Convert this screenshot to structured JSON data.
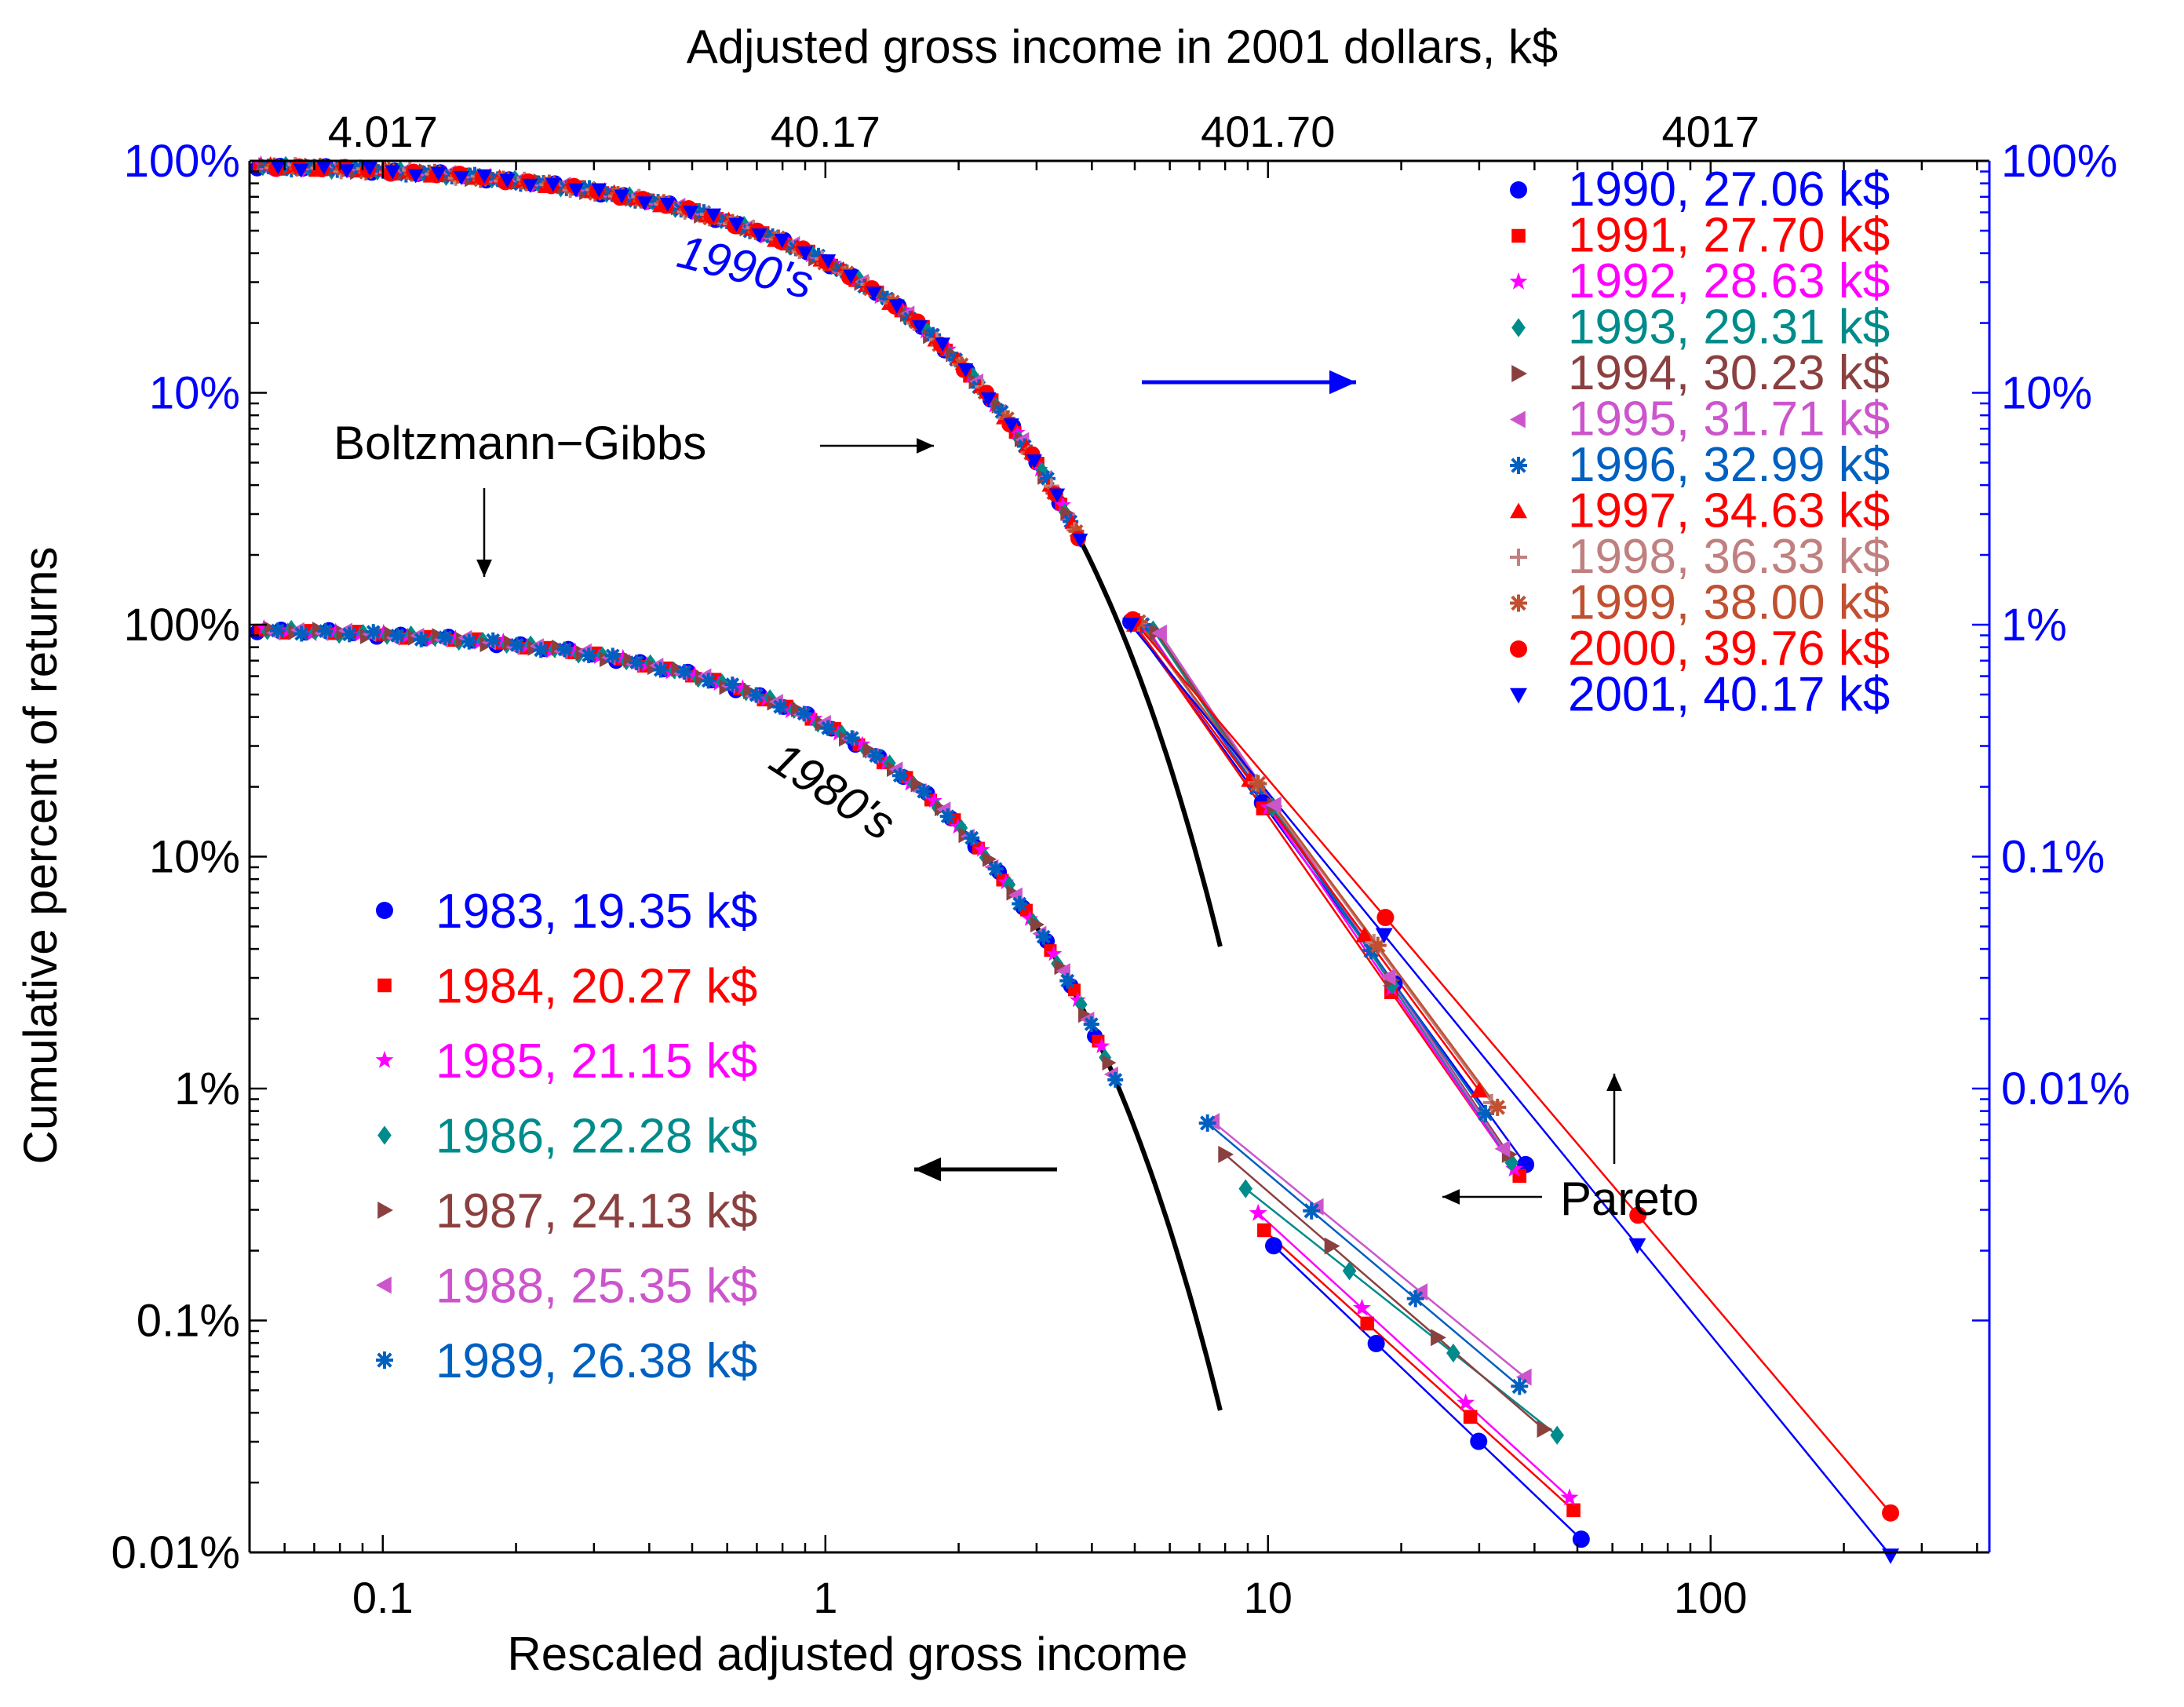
{
  "chart_data": {
    "type": "scatter",
    "title": "",
    "top_axis_label": "Adjusted gross income in 2001 dollars, k$",
    "top_ticks": [
      "4.017",
      "40.17",
      "401.70",
      "4017"
    ],
    "top_tick_values": [
      0.1,
      1,
      10,
      100
    ],
    "xlabel": "Rescaled adjusted gross income",
    "x_ticks": [
      "0.1",
      "1",
      "10",
      "100"
    ],
    "x_tick_values": [
      0.1,
      1,
      10,
      100
    ],
    "xlim": [
      0.05,
      400
    ],
    "xscale": "log",
    "ylabel": "Cumulative percent of returns",
    "yscale": "log",
    "ylim_lower_percent": [
      0.01,
      100
    ],
    "ylim_upper_percent": [
      0.0001,
      100
    ],
    "upper_offset_decades": 2,
    "left_ticks_upper": [
      "100%",
      "10%"
    ],
    "left_ticks_lower": [
      "100%",
      "10%",
      "1%",
      "0.1%",
      "0.01%"
    ],
    "right_ticks": [
      "100%",
      "10%",
      "1%",
      "0.1%",
      "0.01%"
    ],
    "right_tick_percent": [
      100,
      10,
      1,
      0.1,
      0.01
    ],
    "axis_color": "#0000ff",
    "annotations": {
      "label_1990s": "1990's",
      "label_1980s": "1980's",
      "boltzmann": "Boltzmann−Gibbs",
      "pareto": "Pareto"
    },
    "bg_curve": {
      "name": "Boltzmann−Gibbs",
      "formula": "exp(-x)",
      "x_range": [
        0.05,
        7.8
      ],
      "color": "#000000"
    },
    "series_1990s": [
      {
        "year": "1990",
        "label": "1990, 27.06 k$",
        "color": "#0000ff",
        "marker": "circle",
        "pareto_x": [
          4.9,
          38.2
        ],
        "pareto_pct": [
          1.03,
          0.0047
        ]
      },
      {
        "year": "1991",
        "label": "1991, 27.70 k$",
        "color": "#ff0000",
        "marker": "square",
        "pareto_x": [
          5.0,
          37.0
        ],
        "pareto_pct": [
          1.0,
          0.0042
        ]
      },
      {
        "year": "1992",
        "label": "1992, 28.63 k$",
        "color": "#ff00ff",
        "marker": "star",
        "pareto_x": [
          5.3,
          36.0
        ],
        "pareto_pct": [
          0.98,
          0.0045
        ]
      },
      {
        "year": "1993",
        "label": "1993, 29.31 k$",
        "color": "#008b8b",
        "marker": "diamond",
        "pareto_x": [
          5.5,
          35.5
        ],
        "pareto_pct": [
          0.95,
          0.0048
        ]
      },
      {
        "year": "1994",
        "label": "1994, 30.23 k$",
        "color": "#8b4040",
        "marker": "tri-right",
        "pareto_x": [
          5.6,
          35.0
        ],
        "pareto_pct": [
          0.93,
          0.0052
        ]
      },
      {
        "year": "1995",
        "label": "1995, 31.71 k$",
        "color": "#cc55cc",
        "marker": "tri-left",
        "pareto_x": [
          5.7,
          34.0
        ],
        "pareto_pct": [
          0.92,
          0.0055
        ]
      },
      {
        "year": "1996",
        "label": "1996, 32.99 k$",
        "color": "#0060c0",
        "marker": "asterisk",
        "pareto_x": [
          5.2,
          31.0
        ],
        "pareto_pct": [
          1.0,
          0.0078
        ]
      },
      {
        "year": "1997",
        "label": "1997, 34.63 k$",
        "color": "#ff0000",
        "marker": "tri-up",
        "pareto_x": [
          5.0,
          30.0
        ],
        "pareto_pct": [
          1.0,
          0.0098
        ]
      },
      {
        "year": "1998",
        "label": "1998, 36.33 k$",
        "color": "#c08080",
        "marker": "plus",
        "pareto_x": [
          5.1,
          32.0
        ],
        "pareto_pct": [
          1.02,
          0.0087
        ]
      },
      {
        "year": "1999",
        "label": "1999, 38.00 k$",
        "color": "#c05030",
        "marker": "asterisk",
        "pareto_x": [
          5.1,
          33.0
        ],
        "pareto_pct": [
          1.03,
          0.0083
        ]
      },
      {
        "year": "2000",
        "label": "2000, 39.76 k$",
        "color": "#ff0000",
        "marker": "circle",
        "pareto_x": [
          4.95,
          255.0
        ],
        "pareto_pct": [
          1.05,
          0.000148
        ]
      },
      {
        "year": "2001",
        "label": "2001, 40.17 k$",
        "color": "#0000ff",
        "marker": "tri-down",
        "pareto_x": [
          4.9,
          255.0
        ],
        "pareto_pct": [
          1.0,
          9.7e-05
        ]
      }
    ],
    "series_1980s": [
      {
        "year": "1983",
        "label": "1983, 19.35 k$",
        "color": "#0000ff",
        "marker": "circle",
        "pareto_x": [
          10.3,
          51.0
        ],
        "pareto_pct": [
          0.21,
          0.0114
        ]
      },
      {
        "year": "1984",
        "label": "1984, 20.27 k$",
        "color": "#ff0000",
        "marker": "square",
        "pareto_x": [
          9.8,
          49.0
        ],
        "pareto_pct": [
          0.245,
          0.0152
        ]
      },
      {
        "year": "1985",
        "label": "1985, 21.15 k$",
        "color": "#ff00ff",
        "marker": "star",
        "pareto_x": [
          9.5,
          48.0
        ],
        "pareto_pct": [
          0.29,
          0.0172
        ]
      },
      {
        "year": "1986",
        "label": "1986, 22.28 k$",
        "color": "#008b8b",
        "marker": "diamond",
        "pareto_x": [
          8.9,
          45.0
        ],
        "pareto_pct": [
          0.37,
          0.032
        ]
      },
      {
        "year": "1987",
        "label": "1987, 24.13 k$",
        "color": "#8b4040",
        "marker": "tri-right",
        "pareto_x": [
          8.0,
          42.0
        ],
        "pareto_pct": [
          0.52,
          0.034
        ]
      },
      {
        "year": "1988",
        "label": "1988, 25.35 k$",
        "color": "#cc55cc",
        "marker": "tri-left",
        "pareto_x": [
          7.5,
          38.0
        ],
        "pareto_pct": [
          0.72,
          0.057
        ]
      },
      {
        "year": "1989",
        "label": "1989, 26.38 k$",
        "color": "#0060c0",
        "marker": "asterisk",
        "pareto_x": [
          7.3,
          37.0
        ],
        "pareto_pct": [
          0.71,
          0.052
        ]
      }
    ]
  }
}
